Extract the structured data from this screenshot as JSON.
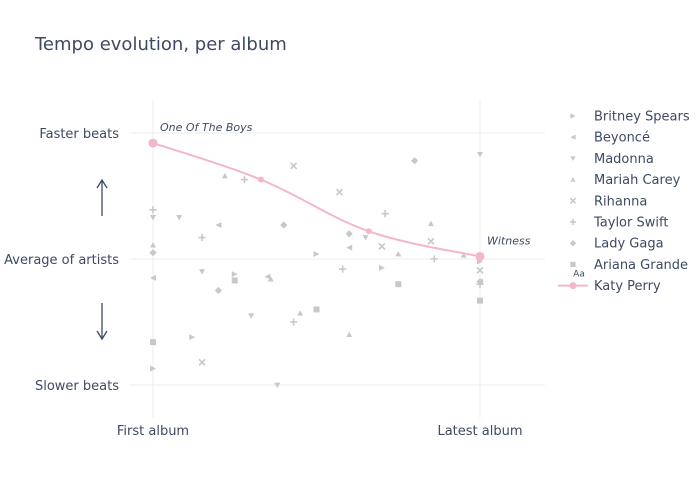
{
  "chart_data": {
    "type": "scatter",
    "title": "Tempo evolution, per album",
    "xlabel": "",
    "ylabel": "",
    "x_ticks": [
      "First album",
      "Latest album"
    ],
    "y_ticks": [
      "Faster beats",
      "Average of artists",
      "Slower beats"
    ],
    "xlim": [
      -0.1,
      1.2
    ],
    "ylim": [
      -1.1,
      1.15
    ],
    "grid": true,
    "legend_position": "right",
    "highlight_color": "#f4b6c8",
    "background_color": "#c8c8c8",
    "arrow_color": "#3d4a63",
    "series": [
      {
        "name": "Britney Spears",
        "symbol": "triangle-right",
        "points": [
          [
            0,
            -0.87
          ],
          [
            0.12,
            -0.62
          ],
          [
            0.25,
            -0.12
          ],
          [
            0.5,
            0.04
          ],
          [
            0.7,
            -0.07
          ],
          [
            1,
            -0.02
          ]
        ]
      },
      {
        "name": "Beyoncé",
        "symbol": "triangle-left",
        "points": [
          [
            0,
            -0.15
          ],
          [
            0.2,
            0.27
          ],
          [
            0.35,
            -0.14
          ],
          [
            0.6,
            0.09
          ],
          [
            1,
            -0.18
          ]
        ]
      },
      {
        "name": "Madonna",
        "symbol": "triangle-down",
        "points": [
          [
            0,
            0.33
          ],
          [
            0.08,
            0.33
          ],
          [
            0.15,
            -0.1
          ],
          [
            0.3,
            -0.45
          ],
          [
            0.38,
            -1.0
          ],
          [
            0.65,
            0.17
          ],
          [
            1,
            0.83
          ]
        ]
      },
      {
        "name": "Mariah Carey",
        "symbol": "triangle-up",
        "points": [
          [
            0,
            0.11
          ],
          [
            0.22,
            0.66
          ],
          [
            0.36,
            -0.16
          ],
          [
            0.45,
            -0.43
          ],
          [
            0.6,
            -0.6
          ],
          [
            0.75,
            0.04
          ],
          [
            0.85,
            0.28
          ],
          [
            0.95,
            0.03
          ]
        ]
      },
      {
        "name": "Rihanna",
        "symbol": "x",
        "points": [
          [
            0.15,
            -0.82
          ],
          [
            0.43,
            0.74
          ],
          [
            0.57,
            0.53
          ],
          [
            0.7,
            0.1
          ],
          [
            0.85,
            0.14
          ],
          [
            1,
            -0.09
          ]
        ]
      },
      {
        "name": "Taylor Swift",
        "symbol": "cross",
        "points": [
          [
            0,
            0.39
          ],
          [
            0.15,
            0.17
          ],
          [
            0.28,
            0.63
          ],
          [
            0.43,
            -0.5
          ],
          [
            0.58,
            -0.08
          ],
          [
            0.71,
            0.36
          ],
          [
            0.86,
            0.0
          ],
          [
            1,
            -0.2
          ]
        ]
      },
      {
        "name": "Lady Gaga",
        "symbol": "diamond",
        "points": [
          [
            0,
            0.05
          ],
          [
            0.2,
            -0.25
          ],
          [
            0.4,
            0.27
          ],
          [
            0.6,
            0.2
          ],
          [
            0.8,
            0.78
          ],
          [
            1,
            -0.18
          ]
        ]
      },
      {
        "name": "Ariana Grande",
        "symbol": "square",
        "points": [
          [
            0,
            -0.66
          ],
          [
            0.25,
            -0.17
          ],
          [
            0.5,
            -0.4
          ],
          [
            0.75,
            -0.2
          ],
          [
            1,
            -0.33
          ]
        ]
      },
      {
        "name": "Katy Perry",
        "symbol": "circle",
        "highlight": true,
        "points": [
          [
            0,
            0.92
          ],
          [
            0.33,
            0.63
          ],
          [
            0.66,
            0.22
          ],
          [
            1,
            0.02
          ]
        ]
      }
    ],
    "annotations": [
      {
        "text": "One Of The Boys",
        "x": 0,
        "y": 0.92
      },
      {
        "text": "Witness",
        "x": 1,
        "y": 0.02
      }
    ],
    "legend_glyph_label": "Aa"
  }
}
